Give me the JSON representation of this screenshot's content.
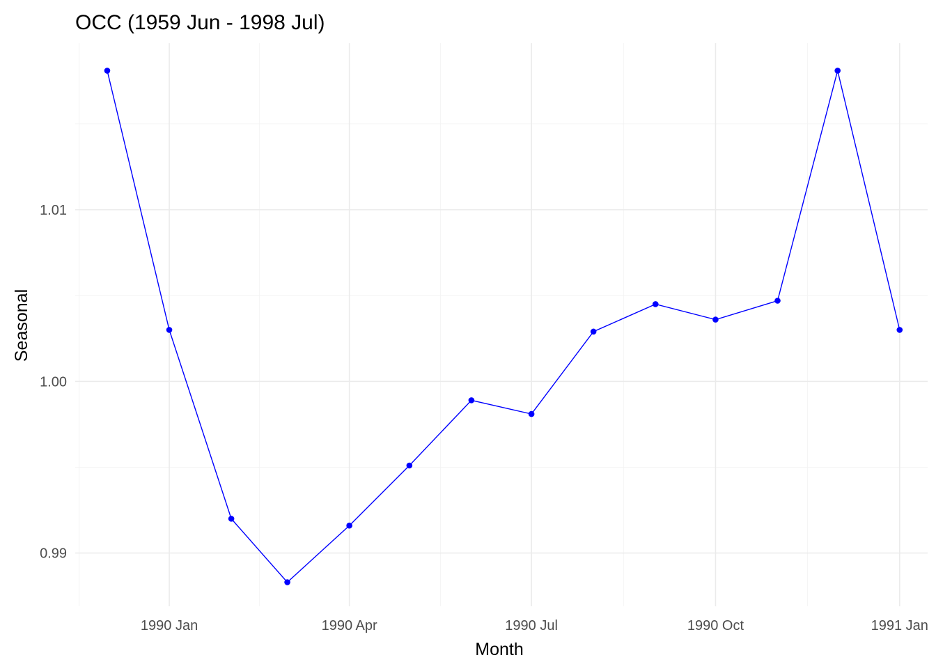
{
  "chart_data": {
    "type": "line",
    "title": "OCC (1959 Jun - 1998 Jul)",
    "xlabel": "Month",
    "ylabel": "Seasonal",
    "x_tick_labels": [
      "1990 Jan",
      "1990 Apr",
      "1990 Jul",
      "1990 Oct",
      "1991 Jan"
    ],
    "x_tick_dates": [
      "1990-01-01",
      "1990-04-01",
      "1990-07-01",
      "1990-10-01",
      "1991-01-01"
    ],
    "y_tick_labels": [
      "0.99",
      "1.00",
      "1.01"
    ],
    "y_ticks": [
      0.99,
      1.0,
      1.01
    ],
    "xlim": [
      "1989-11-15",
      "1991-01-15"
    ],
    "ylim": [
      0.9869,
      1.0197
    ],
    "x": [
      "1989-12-01",
      "1990-01-01",
      "1990-02-01",
      "1990-03-01",
      "1990-04-01",
      "1990-05-01",
      "1990-06-01",
      "1990-07-01",
      "1990-08-01",
      "1990-09-01",
      "1990-10-01",
      "1990-11-01",
      "1990-12-01",
      "1991-01-01"
    ],
    "y": [
      1.0181,
      1.003,
      0.992,
      0.9883,
      0.9916,
      0.9951,
      0.9989,
      0.9981,
      1.0029,
      1.0045,
      1.0036,
      1.0047,
      1.0181,
      1.003
    ],
    "grid": true,
    "colors": {
      "line": "#0000ff",
      "points": "#0000ff"
    }
  }
}
